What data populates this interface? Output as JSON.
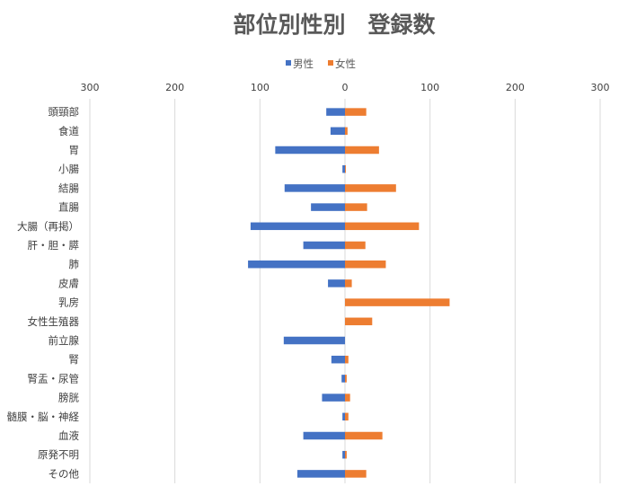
{
  "chart_data": {
    "type": "bar",
    "orientation": "horizontal-diverging",
    "title": "部位別性別　登録数",
    "xlabel": "",
    "ylabel": "",
    "xlim": [
      -300,
      300
    ],
    "x_ticks": [
      -300,
      -200,
      -100,
      0,
      100,
      200,
      300
    ],
    "x_tick_labels": [
      "300",
      "200",
      "100",
      "0",
      "100",
      "200",
      "300"
    ],
    "x_axis_position": "top",
    "grid": true,
    "legend_position": "top-center",
    "categories": [
      "頭頸部",
      "食道",
      "胃",
      "小腸",
      "結腸",
      "直腸",
      "大腸（再掲）",
      "肝・胆・膵",
      "肺",
      "皮膚",
      "乳房",
      "女性生殖器",
      "前立腺",
      "腎",
      "腎盂・尿管",
      "膀胱",
      "髄膜・脳・神経",
      "血液",
      "原発不明",
      "その他"
    ],
    "series": [
      {
        "name": "男性",
        "color": "#4472C4",
        "values": [
          22,
          17,
          82,
          3,
          71,
          40,
          111,
          49,
          114,
          20,
          0,
          0,
          72,
          16,
          4,
          27,
          3,
          49,
          3,
          56
        ]
      },
      {
        "name": "女性",
        "color": "#ED7D31",
        "values": [
          25,
          3,
          40,
          1,
          60,
          26,
          87,
          24,
          48,
          8,
          123,
          32,
          0,
          4,
          2,
          6,
          4,
          44,
          2,
          25
        ]
      }
    ]
  }
}
